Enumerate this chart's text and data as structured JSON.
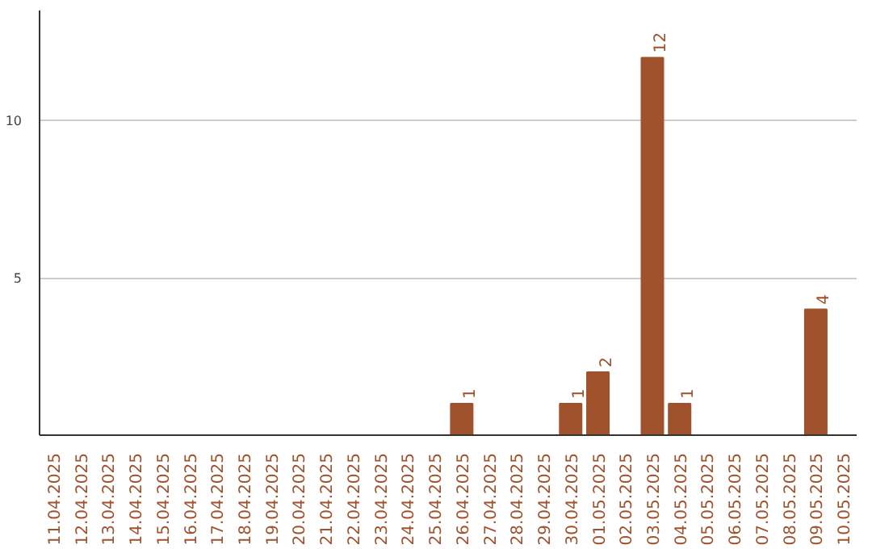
{
  "chart_data": {
    "type": "bar",
    "categories": [
      "11.04.2025",
      "12.04.2025",
      "13.04.2025",
      "14.04.2025",
      "15.04.2025",
      "16.04.2025",
      "17.04.2025",
      "18.04.2025",
      "19.04.2025",
      "20.04.2025",
      "21.04.2025",
      "22.04.2025",
      "23.04.2025",
      "24.04.2025",
      "25.04.2025",
      "26.04.2025",
      "27.04.2025",
      "28.04.2025",
      "29.04.2025",
      "30.04.2025",
      "01.05.2025",
      "02.05.2025",
      "03.05.2025",
      "04.05.2025",
      "05.05.2025",
      "06.05.2025",
      "07.05.2025",
      "08.05.2025",
      "09.05.2025",
      "10.05.2025"
    ],
    "values": [
      0,
      0,
      0,
      0,
      0,
      0,
      0,
      0,
      0,
      0,
      0,
      0,
      0,
      0,
      0,
      1,
      0,
      0,
      0,
      1,
      2,
      0,
      12,
      1,
      0,
      0,
      0,
      0,
      4,
      0
    ],
    "value_labels": [
      null,
      null,
      null,
      null,
      null,
      null,
      null,
      null,
      null,
      null,
      null,
      null,
      null,
      null,
      null,
      "1",
      null,
      null,
      null,
      "1",
      "2",
      null,
      "12",
      "1",
      null,
      null,
      null,
      null,
      "4",
      null
    ],
    "color": "#a0522d",
    "ylim": [
      0,
      13.5
    ],
    "yticks": [
      5,
      10
    ],
    "grid": "y"
  }
}
